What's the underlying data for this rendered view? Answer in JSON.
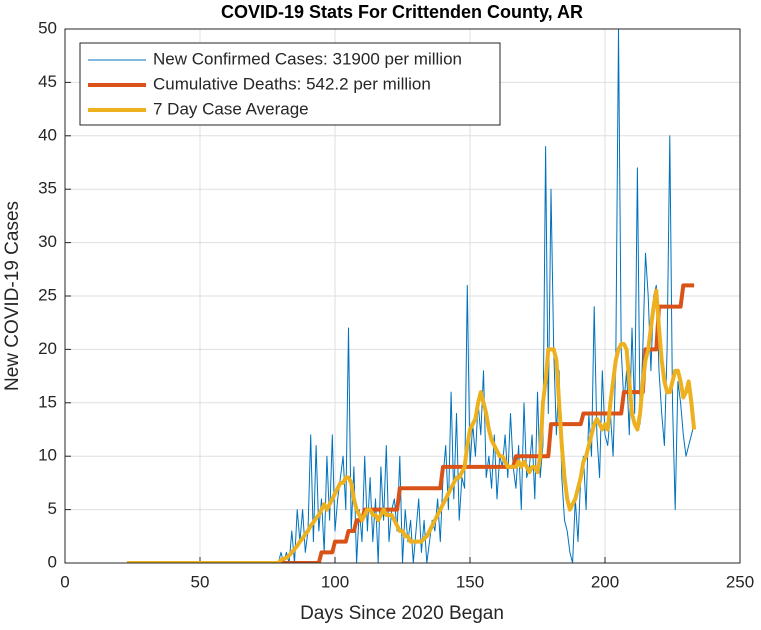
{
  "chart_data": {
    "type": "line",
    "title": "COVID-19 Stats For Crittenden County, AR",
    "xlabel": "Days Since 2020 Began",
    "ylabel": "New COVID-19 Cases",
    "xlim": [
      0,
      250
    ],
    "xticks": [
      0,
      50,
      100,
      150,
      200,
      250
    ],
    "ylim": [
      0,
      50
    ],
    "yticks": [
      0,
      5,
      10,
      15,
      20,
      25,
      30,
      35,
      40,
      45,
      50
    ],
    "grid": true,
    "legend_position": "upper-left",
    "x": [
      23,
      24,
      25,
      26,
      27,
      28,
      29,
      30,
      31,
      32,
      33,
      34,
      35,
      36,
      37,
      38,
      39,
      40,
      41,
      42,
      43,
      44,
      45,
      46,
      47,
      48,
      49,
      50,
      51,
      52,
      53,
      54,
      55,
      56,
      57,
      58,
      59,
      60,
      61,
      62,
      63,
      64,
      65,
      66,
      67,
      68,
      69,
      70,
      71,
      72,
      73,
      74,
      75,
      76,
      77,
      78,
      79,
      80,
      81,
      82,
      83,
      84,
      85,
      86,
      87,
      88,
      89,
      90,
      91,
      92,
      93,
      94,
      95,
      96,
      97,
      98,
      99,
      100,
      101,
      102,
      103,
      104,
      105,
      106,
      107,
      108,
      109,
      110,
      111,
      112,
      113,
      114,
      115,
      116,
      117,
      118,
      119,
      120,
      121,
      122,
      123,
      124,
      125,
      126,
      127,
      128,
      129,
      130,
      131,
      132,
      133,
      134,
      135,
      136,
      137,
      138,
      139,
      140,
      141,
      142,
      143,
      144,
      145,
      146,
      147,
      148,
      149,
      150,
      151,
      152,
      153,
      154,
      155,
      156,
      157,
      158,
      159,
      160,
      161,
      162,
      163,
      164,
      165,
      166,
      167,
      168,
      169,
      170,
      171,
      172,
      173,
      174,
      175,
      176,
      177,
      178,
      179,
      180,
      181,
      182,
      183,
      184,
      185,
      186,
      187,
      188,
      189,
      190,
      191,
      192,
      193,
      194,
      195,
      196,
      197,
      198,
      199,
      200,
      201,
      202,
      203,
      204,
      205,
      206,
      207,
      208,
      209,
      210,
      211,
      212,
      213,
      214,
      215,
      216,
      217,
      218,
      219,
      220,
      221,
      222,
      223,
      224,
      225,
      226,
      227,
      228,
      229,
      230,
      231,
      232,
      233
    ],
    "series": [
      {
        "name": "New Confirmed Cases: 31900 per million",
        "color": "#0072BD",
        "width": 1,
        "values": [
          0,
          0,
          0,
          0,
          0,
          0,
          0,
          0,
          0,
          0,
          0,
          0,
          0,
          0,
          0,
          0,
          0,
          0,
          0,
          0,
          0,
          0,
          0,
          0,
          0,
          0,
          0,
          0,
          0,
          0,
          0,
          0,
          0,
          0,
          0,
          0,
          0,
          0,
          0,
          0,
          0,
          0,
          0,
          0,
          0,
          0,
          0,
          0,
          0,
          0,
          0,
          0,
          0,
          0,
          0,
          0,
          0,
          1,
          0,
          1,
          0,
          3,
          0,
          5,
          2,
          5,
          1,
          3,
          12,
          2,
          11,
          3,
          6,
          1,
          10,
          4,
          12,
          3,
          6,
          8,
          10,
          5,
          22,
          3,
          9,
          0,
          5,
          2,
          10,
          3,
          8,
          2,
          6,
          0,
          9,
          4,
          11,
          2,
          5,
          6,
          3,
          10,
          0,
          5,
          2,
          4,
          0,
          3,
          6,
          1,
          4,
          0,
          2,
          4,
          3,
          6,
          2,
          8,
          11,
          5,
          16,
          6,
          14,
          4,
          8,
          7,
          26,
          9,
          13,
          10,
          15,
          12,
          18,
          8,
          10,
          7,
          12,
          6,
          10,
          9,
          12,
          8,
          14,
          9,
          7,
          11,
          5,
          15,
          8,
          9,
          12,
          6,
          16,
          8,
          11,
          39,
          14,
          35,
          20,
          12,
          18,
          8,
          4,
          3,
          1,
          0,
          6,
          2,
          8,
          10,
          5,
          14,
          10,
          24,
          12,
          8,
          18,
          12,
          11,
          14,
          10,
          19,
          50,
          20,
          15,
          18,
          12,
          22,
          14,
          37,
          13,
          20,
          29,
          25,
          18,
          25,
          26,
          18,
          14,
          11,
          20,
          40,
          15,
          5,
          17,
          15,
          12,
          10,
          11,
          12,
          13
        ]
      },
      {
        "name": "Cumulative Deaths: 542.2 per million",
        "color": "#D95319",
        "width": 4,
        "values": [
          0,
          0,
          0,
          0,
          0,
          0,
          0,
          0,
          0,
          0,
          0,
          0,
          0,
          0,
          0,
          0,
          0,
          0,
          0,
          0,
          0,
          0,
          0,
          0,
          0,
          0,
          0,
          0,
          0,
          0,
          0,
          0,
          0,
          0,
          0,
          0,
          0,
          0,
          0,
          0,
          0,
          0,
          0,
          0,
          0,
          0,
          0,
          0,
          0,
          0,
          0,
          0,
          0,
          0,
          0,
          0,
          0,
          0,
          0,
          0,
          0,
          0,
          0,
          0,
          0,
          0,
          0,
          0,
          0,
          0,
          0,
          0,
          1,
          1,
          1,
          1,
          1,
          2,
          2,
          2,
          2,
          2,
          3,
          3,
          3,
          4,
          4,
          4,
          5,
          5,
          5,
          5,
          5,
          5,
          5,
          5,
          5,
          5,
          5,
          5,
          5,
          7,
          7,
          7,
          7,
          7,
          7,
          7,
          7,
          7,
          7,
          7,
          7,
          7,
          7,
          7,
          7,
          9,
          9,
          9,
          9,
          9,
          9,
          9,
          9,
          9,
          9,
          9,
          9,
          9,
          9,
          9,
          9,
          9,
          9,
          9,
          9,
          9,
          9,
          9,
          9,
          9,
          9,
          9,
          10,
          10,
          10,
          10,
          10,
          10,
          10,
          10,
          10,
          10,
          10,
          10,
          10,
          13,
          13,
          13,
          13,
          13,
          13,
          13,
          13,
          13,
          13,
          13,
          13,
          14,
          14,
          14,
          14,
          14,
          14,
          14,
          14,
          14,
          14,
          14,
          14,
          14,
          14,
          14,
          16,
          16,
          16,
          16,
          16,
          16,
          16,
          16,
          20,
          20,
          20,
          20,
          20,
          24,
          24,
          24,
          24,
          24,
          24,
          24,
          24,
          24,
          26,
          26,
          26,
          26,
          26
        ]
      },
      {
        "name": "7 Day Case Average",
        "color": "#EDB120",
        "width": 4,
        "values": [
          0,
          0,
          0,
          0,
          0,
          0,
          0,
          0,
          0,
          0,
          0,
          0,
          0,
          0,
          0,
          0,
          0,
          0,
          0,
          0,
          0,
          0,
          0,
          0,
          0,
          0,
          0,
          0,
          0,
          0,
          0,
          0,
          0,
          0,
          0,
          0,
          0,
          0,
          0,
          0,
          0,
          0,
          0,
          0,
          0,
          0,
          0,
          0,
          0,
          0,
          0,
          0,
          0,
          0,
          0,
          0,
          0,
          0.3,
          0.4,
          0.5,
          0.7,
          1,
          1.3,
          1.6,
          2,
          2.3,
          2.7,
          3,
          3.5,
          3.8,
          4.2,
          4.5,
          5,
          5.5,
          5,
          5.5,
          6,
          6.5,
          7,
          7.5,
          7.5,
          8,
          8,
          7.5,
          6,
          5,
          4.5,
          4,
          4.5,
          5,
          5,
          4.5,
          4.5,
          4,
          4.5,
          5,
          4.5,
          4.5,
          4.5,
          4,
          3.5,
          3,
          3,
          2.5,
          2.5,
          2,
          2,
          2,
          2,
          2,
          2.3,
          2.5,
          3,
          3.5,
          4,
          4.5,
          5,
          5.5,
          6,
          6.5,
          7,
          7.5,
          8,
          8,
          8.5,
          9,
          11,
          12.5,
          13,
          13.5,
          15,
          16,
          15,
          14,
          12.5,
          11.5,
          11,
          10.5,
          10,
          10,
          9.5,
          9,
          9,
          9,
          9,
          9.5,
          9,
          9.5,
          9,
          8.5,
          9,
          9,
          8.5,
          10,
          15,
          17,
          20,
          20,
          20,
          19,
          15,
          11,
          8,
          6,
          5,
          5.5,
          6,
          7,
          8,
          9.5,
          10,
          11,
          12,
          13,
          13.5,
          13,
          12.5,
          13,
          12.5,
          15,
          17,
          19,
          20,
          20.5,
          20.5,
          20,
          17,
          14,
          13,
          12.5,
          14,
          17,
          19,
          20,
          22,
          24,
          25.5,
          22,
          19,
          17,
          16,
          16,
          17,
          18,
          18,
          17,
          15.5,
          16,
          17,
          15,
          12.5
        ]
      }
    ]
  }
}
